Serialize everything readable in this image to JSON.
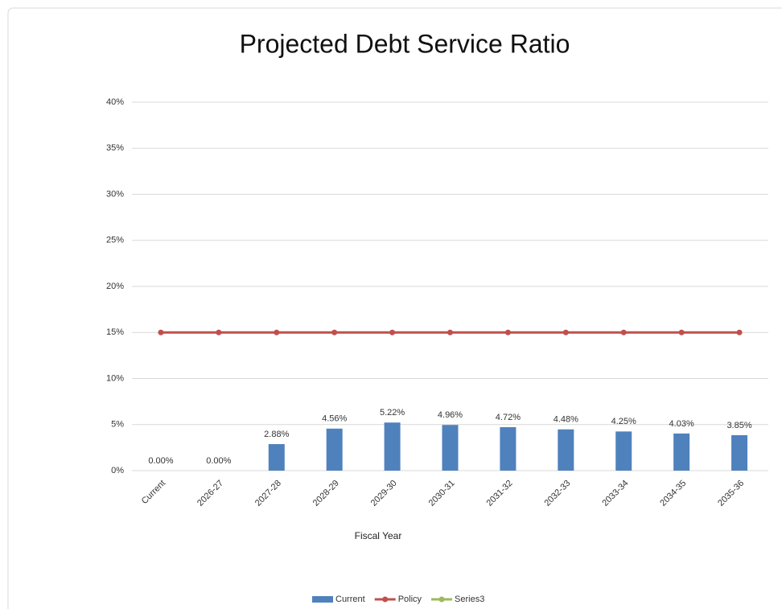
{
  "chart_data": {
    "type": "combo",
    "title": "Projected Debt Service Ratio",
    "x_label": "Fiscal Year",
    "categories": [
      "Current",
      "2026-27",
      "2027-28",
      "2028-29",
      "2029-30",
      "2030-31",
      "2031-32",
      "2032-33",
      "2033-34",
      "2034-35",
      "2035-36"
    ],
    "series": [
      {
        "name": "Current",
        "type": "bar",
        "color": "#4f81bd",
        "values": [
          0,
          0,
          2.88,
          4.56,
          5.22,
          4.96,
          4.72,
          4.48,
          4.25,
          4.03,
          3.85
        ],
        "value_labels": [
          "0.00%",
          "0.00%",
          "2.88%",
          "4.56%",
          "5.22%",
          "4.96%",
          "4.72%",
          "4.48%",
          "4.25%",
          "4.03%",
          "3.85%"
        ]
      },
      {
        "name": "Policy",
        "type": "line",
        "color": "#c0504d",
        "values": [
          15,
          15,
          15,
          15,
          15,
          15,
          15,
          15,
          15,
          15,
          15
        ]
      },
      {
        "name": "Series3",
        "type": "line",
        "color": "#9bbb59",
        "values": [
          null,
          null,
          null,
          null,
          null,
          null,
          null,
          null,
          null,
          null,
          null
        ]
      }
    ],
    "ylim": [
      0,
      40
    ],
    "yticks": [
      {
        "value": 0,
        "label": "0%"
      },
      {
        "value": 5,
        "label": "5%"
      },
      {
        "value": 10,
        "label": "10%"
      },
      {
        "value": 15,
        "label": "15%"
      },
      {
        "value": 20,
        "label": "20%"
      },
      {
        "value": 25,
        "label": "25%"
      },
      {
        "value": 30,
        "label": "30%"
      },
      {
        "value": 35,
        "label": "35%"
      },
      {
        "value": 40,
        "label": "40%"
      }
    ],
    "grid": true,
    "legend": "bottom"
  }
}
